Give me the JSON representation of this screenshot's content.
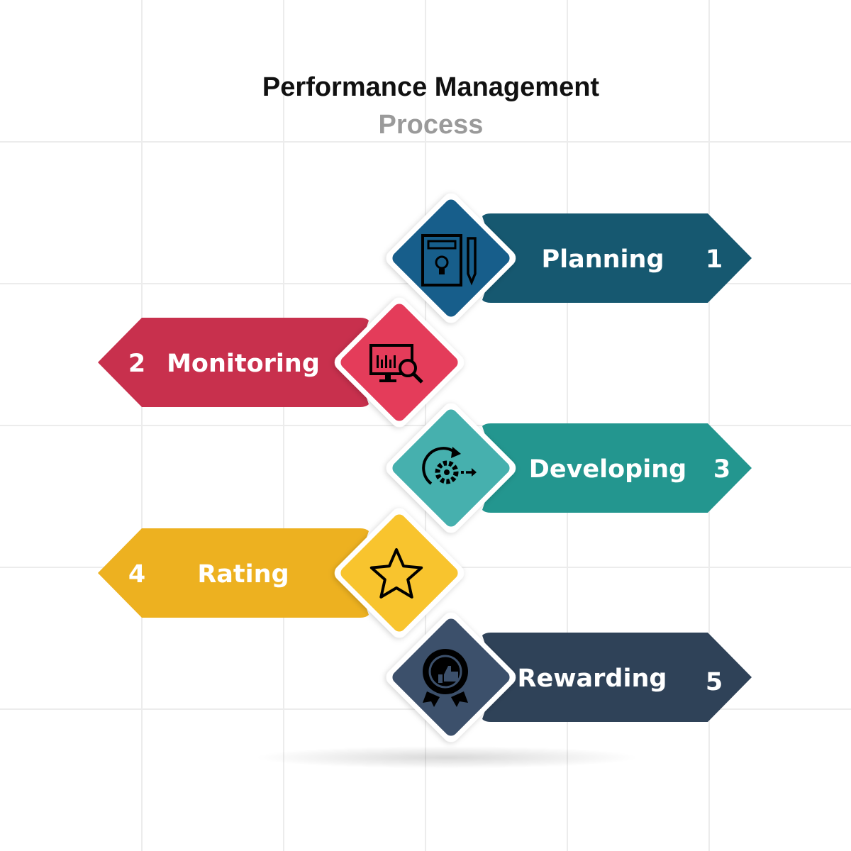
{
  "title": "Performance Management",
  "subtitle": "Process",
  "steps": [
    {
      "number": "1",
      "label": "Planning",
      "icon": "planning-document-lightbulb-pencil-icon",
      "banner_color": "#165870",
      "diamond_color": "#175e8b"
    },
    {
      "number": "2",
      "label": "Monitoring",
      "icon": "monitor-chart-magnifier-icon",
      "banner_color": "#c8304d",
      "diamond_color": "#e43c5a"
    },
    {
      "number": "3",
      "label": "Developing",
      "icon": "gear-progress-arrow-icon",
      "banner_color": "#23968f",
      "diamond_color": "#46b0ae"
    },
    {
      "number": "4",
      "label": "Rating",
      "icon": "star-icon",
      "banner_color": "#edb120",
      "diamond_color": "#f8c42e"
    },
    {
      "number": "5",
      "label": "Rewarding",
      "icon": "award-badge-thumbs-up-icon",
      "banner_color": "#2f4258",
      "diamond_color": "#3c506b"
    }
  ]
}
